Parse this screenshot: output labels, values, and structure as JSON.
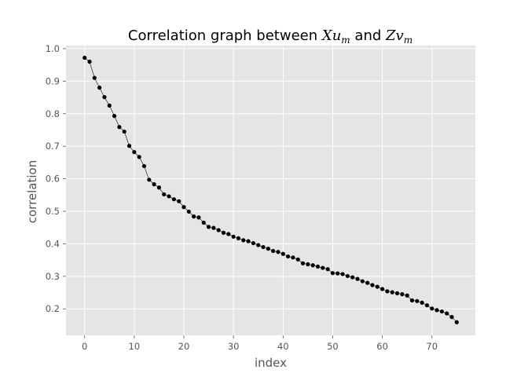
{
  "chart_data": {
    "type": "line",
    "title_parts": {
      "prefix": "Correlation graph between ",
      "var1_base": "Xu",
      "var1_sub": "m",
      "conjunction": " and ",
      "var2_base": "Zv",
      "var2_sub": "m"
    },
    "xlabel": "index",
    "ylabel": "correlation",
    "xlim": [
      -3.75,
      78.75
    ],
    "ylim": [
      0.1185,
      1.0095
    ],
    "xticks": [
      0,
      10,
      20,
      30,
      40,
      50,
      60,
      70
    ],
    "yticks": [
      0.2,
      0.3,
      0.4,
      0.5,
      0.6,
      0.7,
      0.8,
      0.9,
      1.0
    ],
    "ytick_labels": [
      "0.2",
      "0.3",
      "0.4",
      "0.5",
      "0.6",
      "0.7",
      "0.8",
      "0.9",
      "1.0"
    ],
    "grid": true,
    "style": "ggplot",
    "colors": {
      "background": "#e5e5e5",
      "grid": "#ffffff",
      "line": "#000000",
      "marker": "#000000"
    },
    "series": [
      {
        "x": [
          0,
          1,
          2,
          3,
          4,
          5,
          6,
          7,
          8,
          9,
          10,
          11,
          12,
          13,
          14,
          15,
          16,
          17,
          18,
          19,
          20,
          21,
          22,
          23,
          24,
          25,
          26,
          27,
          28,
          29,
          30,
          31,
          32,
          33,
          34,
          35,
          36,
          37,
          38,
          39,
          40,
          41,
          42,
          43,
          44,
          45,
          46,
          47,
          48,
          49,
          50,
          51,
          52,
          53,
          54,
          55,
          56,
          57,
          58,
          59,
          60,
          61,
          62,
          63,
          64,
          65,
          66,
          67,
          68,
          69,
          70,
          71,
          72,
          73,
          74,
          75
        ],
        "values": [
          0.972,
          0.96,
          0.91,
          0.88,
          0.851,
          0.825,
          0.793,
          0.759,
          0.745,
          0.701,
          0.682,
          0.667,
          0.639,
          0.597,
          0.583,
          0.573,
          0.552,
          0.546,
          0.537,
          0.531,
          0.513,
          0.499,
          0.484,
          0.481,
          0.465,
          0.452,
          0.449,
          0.442,
          0.434,
          0.43,
          0.422,
          0.417,
          0.411,
          0.408,
          0.402,
          0.396,
          0.39,
          0.385,
          0.378,
          0.375,
          0.369,
          0.361,
          0.358,
          0.352,
          0.34,
          0.337,
          0.334,
          0.33,
          0.326,
          0.322,
          0.31,
          0.309,
          0.307,
          0.301,
          0.297,
          0.292,
          0.285,
          0.28,
          0.273,
          0.268,
          0.261,
          0.254,
          0.251,
          0.248,
          0.245,
          0.241,
          0.226,
          0.224,
          0.219,
          0.211,
          0.201,
          0.196,
          0.192,
          0.186,
          0.175,
          0.159
        ]
      }
    ]
  }
}
